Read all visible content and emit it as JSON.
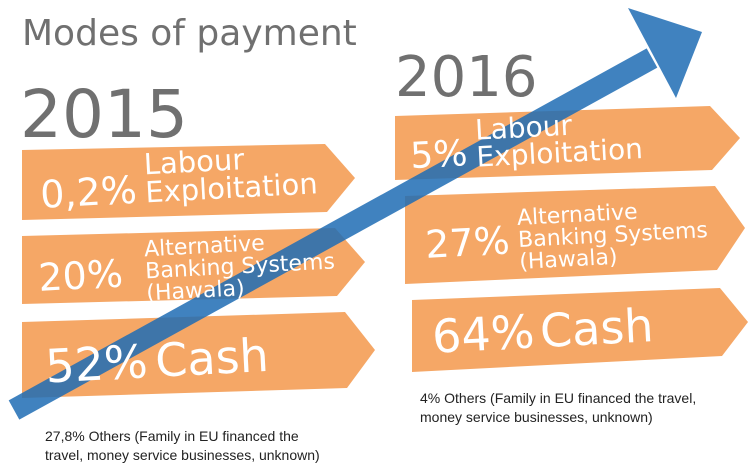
{
  "title": "Modes of payment",
  "years": [
    {
      "year": "2015",
      "items": [
        {
          "percent": "0,2%",
          "label_lines": [
            "Labour",
            "Exploitation"
          ]
        },
        {
          "percent": "20%",
          "label_lines": [
            "Alternative",
            "Banking Systems",
            "(Hawala)"
          ]
        },
        {
          "percent": "52%",
          "label_lines": [
            "Cash"
          ]
        }
      ],
      "note_lines": [
        "27,8% Others (Family in EU financed the",
        "travel, money service businesses, unknown)"
      ]
    },
    {
      "year": "2016",
      "items": [
        {
          "percent": "5%",
          "label_lines": [
            "Labour",
            "Exploitation"
          ]
        },
        {
          "percent": "27%",
          "label_lines": [
            "Alternative",
            "Banking Systems",
            "(Hawala)"
          ]
        },
        {
          "percent": "64%",
          "label_lines": [
            "Cash"
          ]
        }
      ],
      "note_lines": [
        "4% Others (Family in EU financed the travel,",
        "money service businesses, unknown)"
      ]
    }
  ]
}
